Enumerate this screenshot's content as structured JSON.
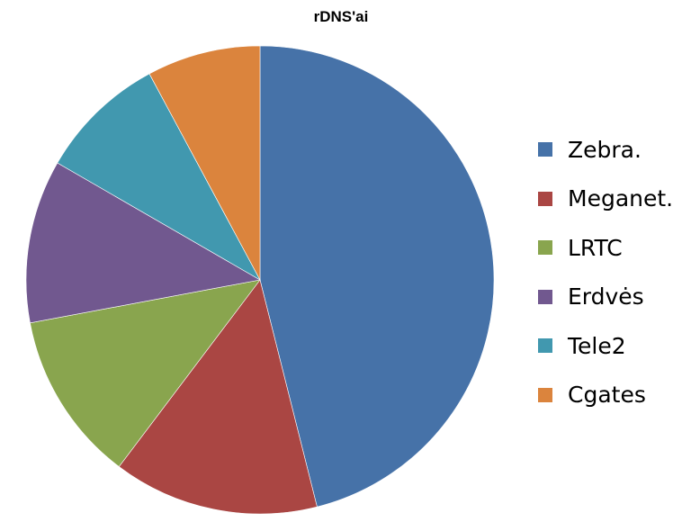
{
  "chart_data": {
    "type": "pie",
    "title": "rDNS'ai",
    "categories": [
      "Zebra.",
      "Meganet.",
      "LRTC",
      "Erdvės",
      "Tele2",
      "Cgates"
    ],
    "values": [
      47.0,
      14.5,
      12.0,
      11.5,
      9.0,
      8.0
    ],
    "colors": [
      "#4672A8",
      "#AA4643",
      "#89A54E",
      "#71588F",
      "#4198AF",
      "#DB843D"
    ],
    "legend_position": "right",
    "start_angle_deg": 0,
    "direction": "clockwise"
  }
}
